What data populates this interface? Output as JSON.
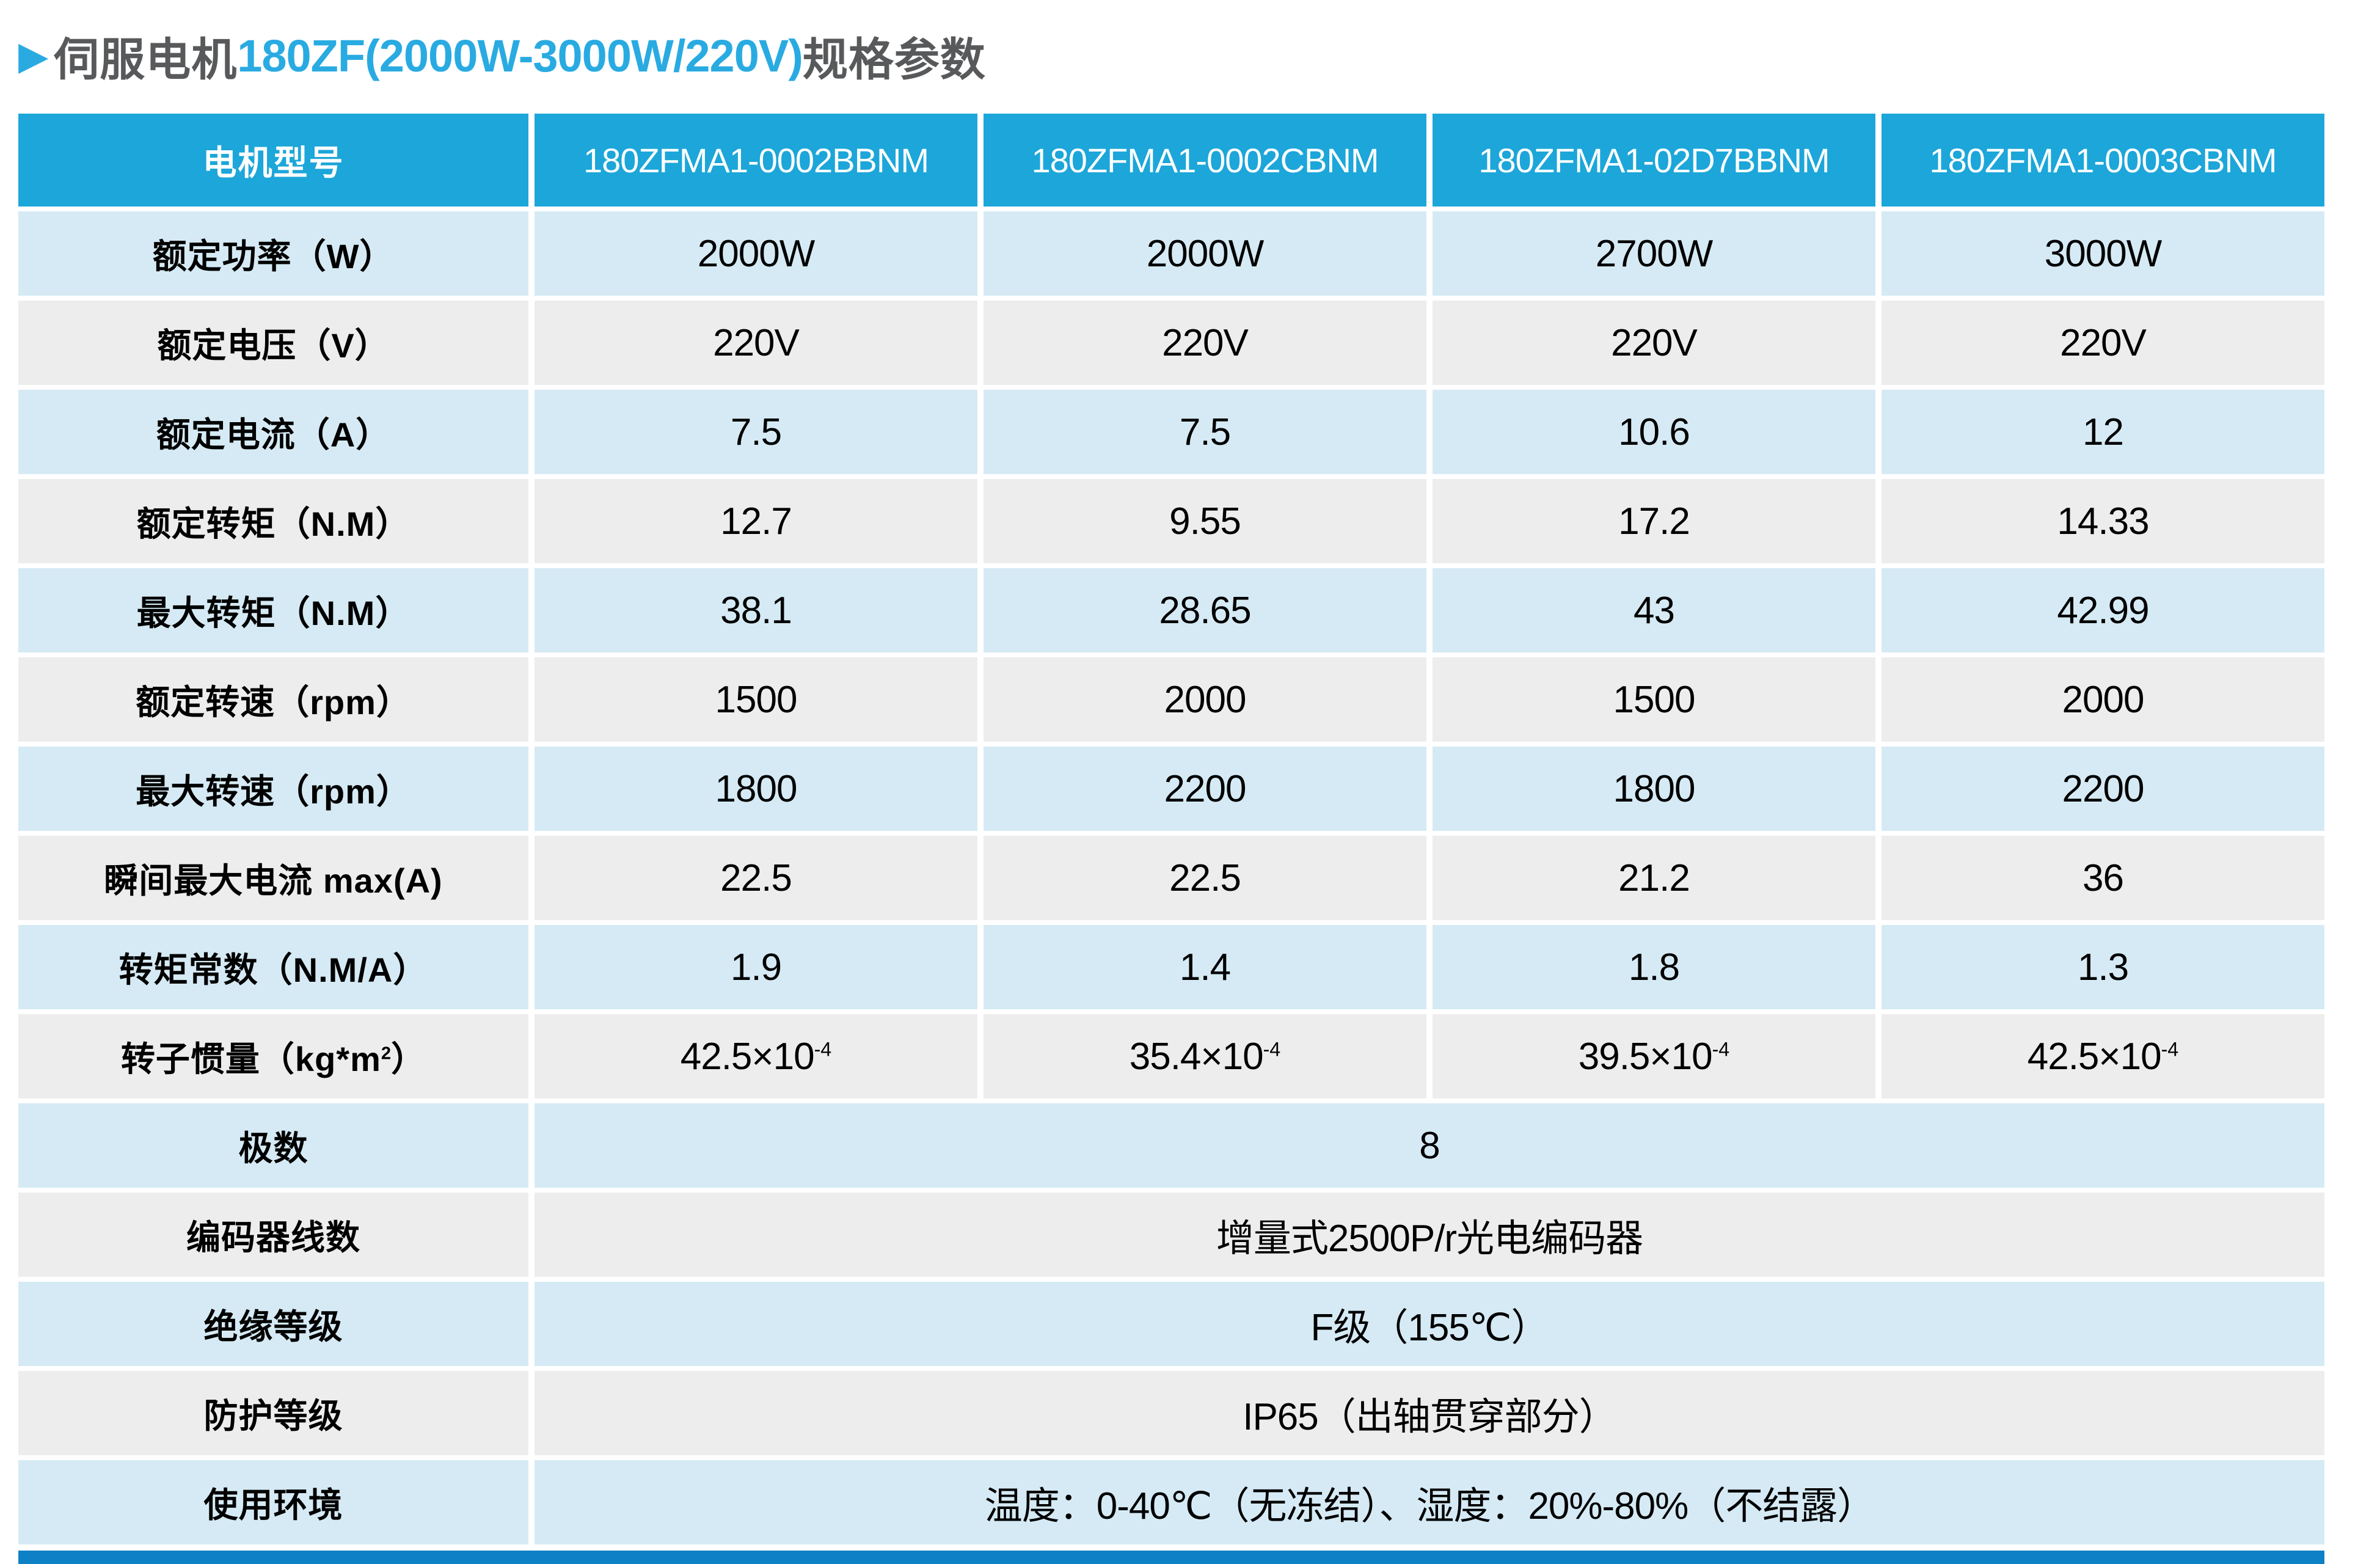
{
  "title": {
    "arrow": "▶",
    "prefix": "伺服电机",
    "highlight": "180ZF(2000W-3000W/220V)",
    "suffix": "规格参数"
  },
  "colors": {
    "accent": "#29ABE2",
    "title-dark": "#58595B",
    "header-blue": "#1CA6D9",
    "row-blue": "#D5EAF4",
    "row-gray": "#EDEDED",
    "bar-blue": "#0E80C5"
  },
  "table": {
    "header": {
      "label": "电机型号",
      "models": [
        "180ZFMA1-0002BBNM",
        "180ZFMA1-0002CBNM",
        "180ZFMA1-02D7BBNM",
        "180ZFMA1-0003CBNM"
      ]
    },
    "rows": [
      {
        "label": "额定功率（W）",
        "values": [
          "2000W",
          "2000W",
          "2700W",
          "3000W"
        ]
      },
      {
        "label": "额定电压（V）",
        "values": [
          "220V",
          "220V",
          "220V",
          "220V"
        ]
      },
      {
        "label": "额定电流（A）",
        "values": [
          "7.5",
          "7.5",
          "10.6",
          "12"
        ]
      },
      {
        "label": "额定转矩（N.M）",
        "values": [
          "12.7",
          "9.55",
          "17.2",
          "14.33"
        ]
      },
      {
        "label": "最大转矩（N.M）",
        "values": [
          "38.1",
          "28.65",
          "43",
          "42.99"
        ]
      },
      {
        "label": "额定转速（rpm）",
        "values": [
          "1500",
          "2000",
          "1500",
          "2000"
        ]
      },
      {
        "label": "最大转速（rpm）",
        "values": [
          "1800",
          "2200",
          "1800",
          "2200"
        ]
      },
      {
        "label": "瞬间最大电流 max(A)",
        "values": [
          "22.5",
          "22.5",
          "21.2",
          "36"
        ]
      },
      {
        "label": "转矩常数（N.M/A）",
        "values": [
          "1.9",
          "1.4",
          "1.8",
          "1.3"
        ]
      },
      {
        "label_base": "转子惯量（kg*m",
        "label_sup": "2",
        "label_end": "）",
        "values_base": [
          "42.5×10",
          "35.4×10",
          "39.5×10",
          "42.5×10"
        ],
        "values_sup": [
          "-4",
          "-4",
          "-4",
          "-4"
        ]
      }
    ],
    "merged_rows": [
      {
        "label": "极数",
        "value": "8"
      },
      {
        "label": "编码器线数",
        "value": "增量式2500P/r光电编码器"
      },
      {
        "label": "绝缘等级",
        "value": "F级（155℃）"
      },
      {
        "label": "防护等级",
        "value": "IP65（出轴贯穿部分）"
      },
      {
        "label": "使用环境",
        "value": "温度：0-40℃（无冻结）、湿度：20%-80%（不结露）"
      }
    ]
  }
}
